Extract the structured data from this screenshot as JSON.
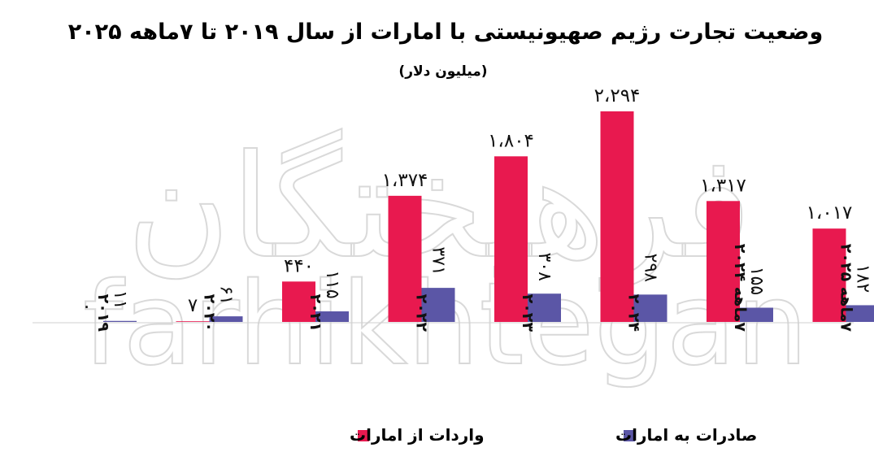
{
  "chart_data": {
    "type": "bar",
    "title": "وضعیت تجارت رژیم صهیونیستی با امارات از سال ۲۰۱۹ تا ۷ماهه ۲۰۲۵",
    "subtitle": "(میلیون دلار)",
    "categories": [
      "۲۰۱۹",
      "۲۰۲۰",
      "۲۰۲۱",
      "۲۰۲۲",
      "۲۰۲۳",
      "۲۰۲۴",
      "۷ماهه ۲۰۲۴",
      "۷ماهه ۲۰۲۵"
    ],
    "series": [
      {
        "name": "واردات از امارات",
        "color": "#e8194f",
        "values": [
          0,
          7,
          440,
          1374,
          1804,
          2294,
          1317,
          1017
        ],
        "labels": [
          "۰",
          "۷",
          "۴۴۰",
          "۱،۳۷۴",
          "۱،۸۰۴",
          "۲،۲۹۴",
          "۱،۳۱۷",
          "۱،۰۱۷"
        ]
      },
      {
        "name": "صادرات به امارات",
        "color": "#5b56a6",
        "values": [
          11,
          61,
          115,
          371,
          308,
          298,
          155,
          182
        ],
        "labels": [
          "۱۱",
          "۶۱",
          "۱۱۵",
          "۳۷۱",
          "۳۰۸",
          "۲۹۸",
          "۱۵۵",
          "۱۸۲"
        ]
      }
    ],
    "ylim": [
      0,
      2400
    ],
    "grid": false,
    "legend": "bottom"
  },
  "watermark": {
    "top": "فرهیختگان",
    "bottom": "farhikhtegan"
  }
}
